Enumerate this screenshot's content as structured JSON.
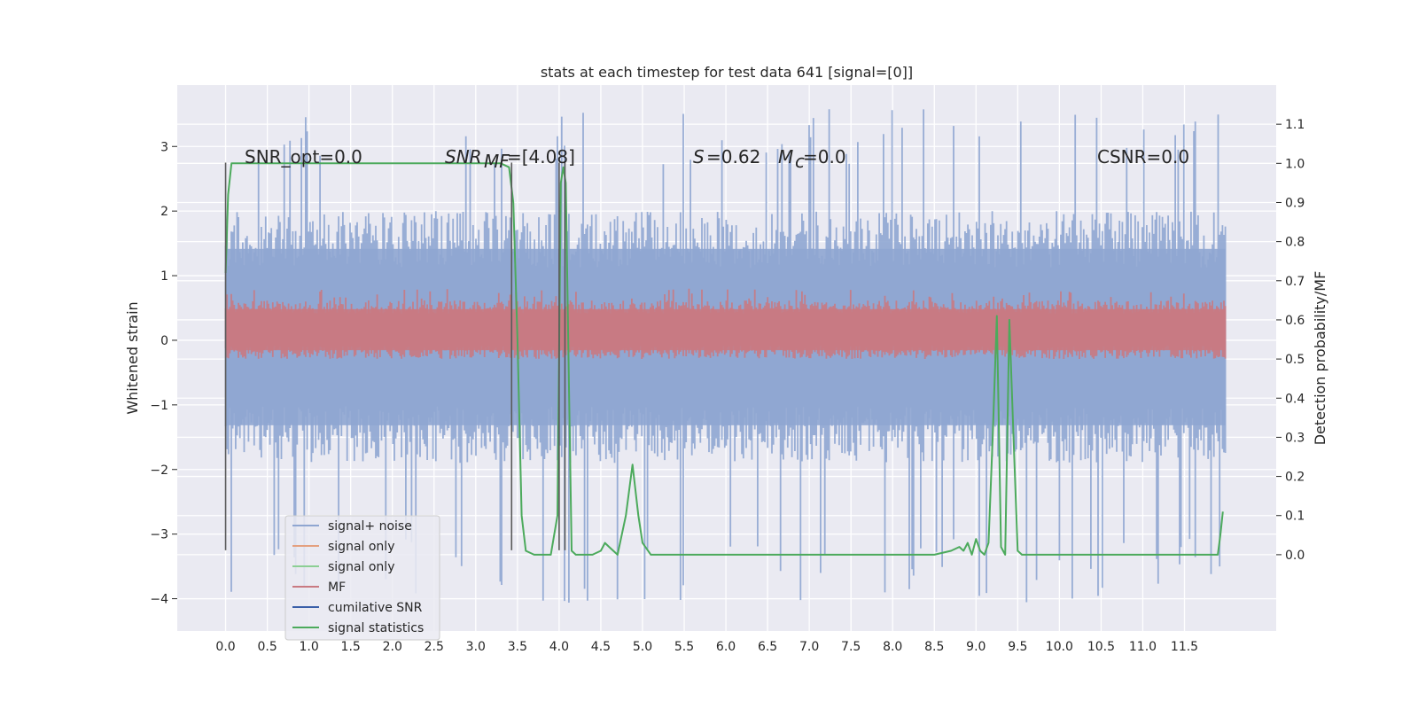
{
  "chart_data": {
    "type": "line",
    "title": "stats at each timestep for test data 641 [signal=[0]]",
    "xlabel": "",
    "ylabel": "Whitened strain",
    "y2label": "Detection probability/MF",
    "xlim": [
      -0.58,
      12.6
    ],
    "ylim": [
      -4.5,
      3.95
    ],
    "y2lim": [
      -0.195,
      1.2
    ],
    "x_ticks": [
      0.0,
      0.5,
      1.0,
      1.5,
      2.0,
      2.5,
      3.0,
      3.5,
      4.0,
      4.5,
      5.0,
      5.5,
      6.0,
      6.5,
      7.0,
      7.5,
      8.0,
      8.5,
      9.0,
      9.5,
      10.0,
      10.5,
      11.0,
      11.5
    ],
    "x_tick_labels": [
      "0.0",
      "0.5",
      "1.0",
      "1.5",
      "2.0",
      "2.5",
      "3.0",
      "3.5",
      "4.0",
      "4.5",
      "5.0",
      "5.5",
      "6.0",
      "6.5",
      "7.0",
      "7.5",
      "8.0",
      "8.5",
      "9.0",
      "9.5",
      "10.0",
      "10.5",
      "11.0",
      "11.5"
    ],
    "y_ticks": [
      -4,
      -3,
      -2,
      -1,
      0,
      1,
      2,
      3
    ],
    "y_tick_labels": [
      "−4",
      "−3",
      "−2",
      "−1",
      "0",
      "1",
      "2",
      "3"
    ],
    "y2_ticks": [
      0.0,
      0.1,
      0.2,
      0.3,
      0.4,
      0.5,
      0.6,
      0.7,
      0.8,
      0.9,
      1.0,
      1.1
    ],
    "y2_tick_labels": [
      "0.0",
      "0.1",
      "0.2",
      "0.3",
      "0.4",
      "0.5",
      "0.6",
      "0.7",
      "0.8",
      "0.9",
      "1.0",
      "1.1"
    ],
    "grid": true,
    "legend_position": "lower-left",
    "annotations": {
      "snr_opt": "SNR_opt=0.0",
      "snr_mf_main": "SNR",
      "snr_mf_sub": "MF",
      "snr_mf_val": "=[4.08]",
      "s_label": "S",
      "s_val": "=0.62",
      "mc_label": "M",
      "mc_sub": "c",
      "mc_val": "=0.0",
      "csnr": "CSNR=0.0"
    },
    "legend": [
      {
        "label": "signal+ noise",
        "color": "#8fa6d1"
      },
      {
        "label": "signal only",
        "color": "#e4a07f"
      },
      {
        "label": "signal only",
        "color": "#8ccf94"
      },
      {
        "label": "MF",
        "color": "#c97a82"
      },
      {
        "label": "cumilative SNR",
        "color": "#3a5fa8"
      },
      {
        "label": "signal statistics",
        "color": "#4caa5c"
      }
    ],
    "series": [
      {
        "name": "signal+ noise",
        "axis": "left",
        "color": "#8fa6d1",
        "style": "dense noise band",
        "x_range": [
          0.0,
          11.99
        ],
        "typical_range": [
          -1.9,
          2.0
        ],
        "max": 3.6,
        "min": -4.1
      },
      {
        "name": "MF",
        "axis": "right",
        "color": "#c97a82",
        "style": "dense noise band",
        "x_range": [
          0.0,
          11.99
        ],
        "typical_range": [
          0.5,
          0.65
        ],
        "max": 0.68,
        "min": 0.5
      },
      {
        "name": "signal statistics",
        "axis": "right",
        "color": "#4caa5c",
        "x": [
          0.0,
          0.03,
          0.07,
          0.1,
          0.5,
          1.0,
          2.0,
          3.0,
          3.3,
          3.4,
          3.45,
          3.5,
          3.55,
          3.6,
          3.7,
          3.8,
          3.9,
          3.98,
          4.02,
          4.05,
          4.08,
          4.12,
          4.15,
          4.2,
          4.3,
          4.4,
          4.5,
          4.55,
          4.6,
          4.7,
          4.8,
          4.88,
          4.95,
          5.0,
          5.1,
          5.3,
          6.0,
          7.0,
          8.0,
          8.5,
          8.7,
          8.8,
          8.85,
          8.9,
          8.95,
          9.0,
          9.05,
          9.1,
          9.15,
          9.2,
          9.25,
          9.3,
          9.35,
          9.4,
          9.45,
          9.5,
          9.55,
          9.6,
          9.7,
          10.0,
          10.5,
          11.0,
          11.5,
          11.9,
          11.93,
          11.96
        ],
        "y": [
          0.72,
          0.92,
          1.0,
          1.0,
          1.0,
          1.0,
          1.0,
          1.0,
          1.0,
          0.99,
          0.9,
          0.55,
          0.1,
          0.01,
          0.0,
          0.0,
          0.0,
          0.1,
          0.95,
          0.99,
          0.95,
          0.4,
          0.01,
          0.0,
          0.0,
          0.0,
          0.01,
          0.03,
          0.02,
          0.0,
          0.1,
          0.23,
          0.1,
          0.03,
          0.0,
          0.0,
          0.0,
          0.0,
          0.0,
          0.0,
          0.01,
          0.02,
          0.01,
          0.03,
          0.0,
          0.04,
          0.01,
          0.0,
          0.03,
          0.3,
          0.61,
          0.02,
          0.0,
          0.6,
          0.3,
          0.01,
          0.0,
          0.0,
          0.0,
          0.0,
          0.0,
          0.0,
          0.0,
          0.0,
          0.05,
          0.11
        ]
      },
      {
        "name": "signal markers",
        "axis": "left",
        "color": "#5a5a5a",
        "style": "vertical lines",
        "x": [
          0.0,
          3.43,
          4.0,
          4.07
        ],
        "y_range": [
          -3.25,
          2.75
        ]
      }
    ]
  }
}
